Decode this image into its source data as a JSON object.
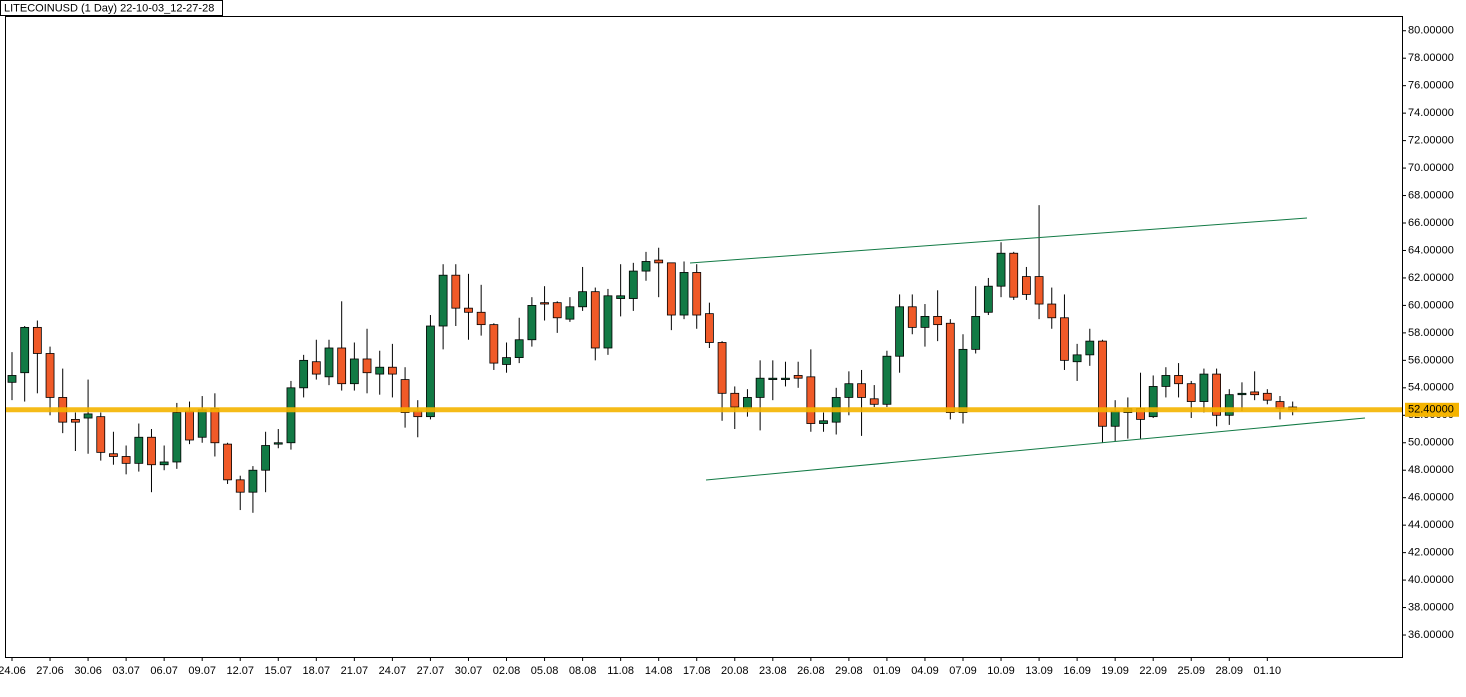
{
  "chart_data": {
    "type": "candlestick",
    "title": "LITECOINUSD (1 Day) 22-10-03_12-27-28",
    "categories": [
      "24.06",
      null,
      null,
      "27.06",
      null,
      null,
      "30.06",
      null,
      null,
      "03.07",
      null,
      null,
      "06.07",
      null,
      null,
      "09.07",
      null,
      null,
      "12.07",
      null,
      null,
      "15.07",
      null,
      null,
      "18.07",
      null,
      null,
      "21.07",
      null,
      null,
      "24.07",
      null,
      null,
      "27.07",
      null,
      null,
      "30.07",
      null,
      null,
      "02.08",
      null,
      null,
      "05.08",
      null,
      null,
      "08.08",
      null,
      null,
      "11.08",
      null,
      null,
      "14.08",
      null,
      null,
      "17.08",
      null,
      null,
      "20.08",
      null,
      null,
      "23.08",
      null,
      null,
      "26.08",
      null,
      null,
      "29.08",
      null,
      null,
      "01.09",
      null,
      null,
      "04.09",
      null,
      null,
      "07.09",
      null,
      null,
      "10.09",
      null,
      null,
      "13.09",
      null,
      null,
      "16.09",
      null,
      null,
      "19.09",
      null,
      null,
      "22.09",
      null,
      null,
      "25.09",
      null,
      null,
      "28.09",
      null,
      null,
      "01.10",
      null,
      null
    ],
    "open": [
      54.4,
      55.1,
      58.4,
      56.5,
      53.3,
      51.7,
      51.8,
      51.9,
      49.2,
      49.0,
      48.5,
      50.4,
      48.4,
      48.6,
      52.3,
      50.4,
      52.5,
      49.9,
      47.3,
      46.4,
      48.0,
      49.9,
      50.0,
      54.0,
      55.9,
      54.8,
      56.9,
      54.3,
      56.1,
      55.0,
      55.5,
      54.6,
      52.3,
      51.9,
      58.5,
      62.2,
      59.8,
      59.5,
      58.6,
      55.7,
      56.2,
      57.5,
      60.2,
      60.2,
      59.0,
      59.9,
      61.0,
      56.9,
      60.5,
      60.5,
      62.5,
      63.3,
      63.1,
      59.3,
      62.4,
      59.4,
      57.3,
      53.6,
      52.5,
      53.3,
      54.6,
      54.6,
      54.9,
      54.8,
      51.4,
      51.5,
      53.3,
      54.3,
      53.2,
      52.8,
      56.3,
      59.9,
      58.4,
      59.2,
      58.7,
      52.2,
      56.8,
      59.5,
      61.4,
      63.8,
      62.1,
      62.1,
      60.1,
      59.1,
      55.9,
      56.4,
      57.4,
      51.2,
      52.2,
      52.5,
      51.9,
      54.1,
      54.9,
      54.3,
      53.0,
      55.0,
      52.0,
      53.5,
      53.7,
      53.6,
      53.0,
      52.6
    ],
    "high": [
      56.6,
      58.5,
      58.9,
      57.0,
      55.4,
      52.2,
      54.6,
      52.2,
      50.8,
      49.8,
      51.4,
      51.0,
      49.8,
      52.9,
      53.0,
      53.4,
      53.6,
      50.0,
      47.6,
      48.3,
      50.8,
      51.0,
      54.5,
      56.4,
      57.5,
      57.5,
      60.3,
      57.3,
      58.3,
      56.7,
      57.2,
      55.5,
      53.1,
      59.3,
      63.0,
      63.0,
      62.3,
      61.5,
      58.7,
      57.3,
      59.1,
      60.6,
      61.4,
      60.3,
      60.6,
      62.8,
      61.3,
      61.2,
      63.0,
      63.1,
      63.9,
      64.2,
      63.1,
      63.2,
      63.0,
      60.2,
      57.4,
      54.1,
      53.9,
      56.0,
      56.0,
      55.9,
      55.9,
      56.8,
      52.2,
      54.0,
      55.2,
      55.3,
      54.2,
      56.7,
      60.8,
      60.8,
      60.1,
      61.1,
      59.0,
      57.9,
      61.4,
      62.0,
      64.6,
      63.9,
      62.8,
      67.3,
      61.3,
      60.8,
      57.2,
      58.3,
      57.5,
      53.1,
      53.3,
      55.1,
      54.9,
      55.5,
      55.8,
      54.5,
      55.4,
      55.4,
      53.9,
      54.4,
      55.2,
      53.9,
      53.4,
      53.0
    ],
    "low": [
      53.1,
      53.0,
      53.6,
      52.0,
      50.7,
      49.4,
      49.2,
      48.7,
      48.4,
      47.7,
      47.9,
      46.4,
      48.0,
      48.1,
      49.9,
      50.0,
      49.0,
      47.0,
      45.1,
      44.9,
      46.4,
      49.6,
      49.5,
      53.3,
      54.6,
      54.2,
      53.8,
      53.8,
      53.6,
      53.5,
      53.3,
      51.1,
      50.4,
      51.7,
      56.8,
      58.5,
      57.5,
      57.8,
      55.3,
      55.1,
      55.8,
      57.0,
      58.9,
      58.0,
      58.8,
      59.6,
      56.0,
      56.4,
      59.2,
      59.6,
      61.8,
      60.6,
      58.2,
      59.0,
      58.3,
      56.9,
      51.6,
      51.0,
      51.9,
      50.9,
      53.1,
      54.1,
      54.0,
      50.8,
      50.8,
      50.6,
      52.0,
      50.5,
      52.6,
      52.6,
      55.1,
      57.9,
      57.0,
      57.4,
      51.7,
      51.4,
      56.5,
      59.3,
      60.6,
      60.4,
      60.4,
      59.0,
      58.3,
      55.3,
      54.5,
      55.6,
      50.0,
      50.1,
      50.3,
      50.3,
      51.8,
      53.3,
      53.3,
      51.8,
      52.2,
      51.2,
      51.3,
      52.3,
      53.1,
      52.8,
      51.7,
      52.0
    ],
    "close": [
      54.9,
      58.4,
      56.5,
      53.3,
      51.5,
      51.5,
      52.1,
      49.3,
      49.0,
      48.5,
      50.4,
      48.4,
      48.6,
      52.2,
      50.2,
      52.4,
      50.0,
      47.3,
      46.4,
      48.0,
      49.8,
      50.0,
      54.0,
      56.0,
      55.0,
      56.9,
      54.3,
      56.1,
      55.1,
      55.5,
      55.0,
      52.2,
      51.9,
      58.5,
      62.2,
      59.8,
      59.5,
      58.6,
      55.8,
      56.2,
      57.5,
      60.0,
      60.1,
      59.1,
      59.9,
      61.0,
      56.9,
      60.7,
      60.7,
      62.5,
      63.2,
      63.1,
      59.3,
      62.4,
      59.3,
      57.3,
      53.6,
      52.6,
      53.3,
      54.7,
      54.7,
      54.7,
      54.7,
      51.4,
      51.6,
      53.3,
      54.3,
      53.3,
      52.8,
      56.3,
      59.9,
      58.4,
      59.2,
      58.6,
      52.2,
      56.8,
      59.2,
      61.4,
      63.8,
      60.6,
      60.8,
      60.1,
      59.1,
      56.0,
      56.4,
      57.4,
      51.2,
      52.3,
      52.5,
      51.7,
      54.1,
      54.9,
      54.3,
      53.0,
      55.0,
      52.0,
      53.5,
      53.6,
      53.5,
      53.1,
      52.5,
      52.4
    ],
    "up_color": "#127a45",
    "down_color": "#f05a28",
    "ylim": [
      34.4,
      81.0
    ],
    "yticks": [
      {
        "value": 36,
        "label": "36.00000"
      },
      {
        "value": 38,
        "label": "38.00000"
      },
      {
        "value": 40,
        "label": "40.00000"
      },
      {
        "value": 42,
        "label": "42.00000"
      },
      {
        "value": 44,
        "label": "44.00000"
      },
      {
        "value": 46,
        "label": "46.00000"
      },
      {
        "value": 48,
        "label": "48.00000"
      },
      {
        "value": 50,
        "label": "50.00000"
      },
      {
        "value": 52,
        "label": "52.00000"
      },
      {
        "value": 54,
        "label": "54.00000"
      },
      {
        "value": 56,
        "label": "56.00000"
      },
      {
        "value": 58,
        "label": "58.00000"
      },
      {
        "value": 60,
        "label": "60.00000"
      },
      {
        "value": 62,
        "label": "62.00000"
      },
      {
        "value": 64,
        "label": "64.00000"
      },
      {
        "value": 66,
        "label": "66.00000"
      },
      {
        "value": 68,
        "label": "68.00000"
      },
      {
        "value": 70,
        "label": "70.00000"
      },
      {
        "value": 72,
        "label": "72.00000"
      },
      {
        "value": 74,
        "label": "74.00000"
      },
      {
        "value": 76,
        "label": "76.00000"
      },
      {
        "value": 78,
        "label": "78.00000"
      },
      {
        "value": 80,
        "label": "80.00000"
      }
    ],
    "price_line": {
      "value": 52.4,
      "label": "52.40000",
      "color": "#f5b400"
    }
  }
}
